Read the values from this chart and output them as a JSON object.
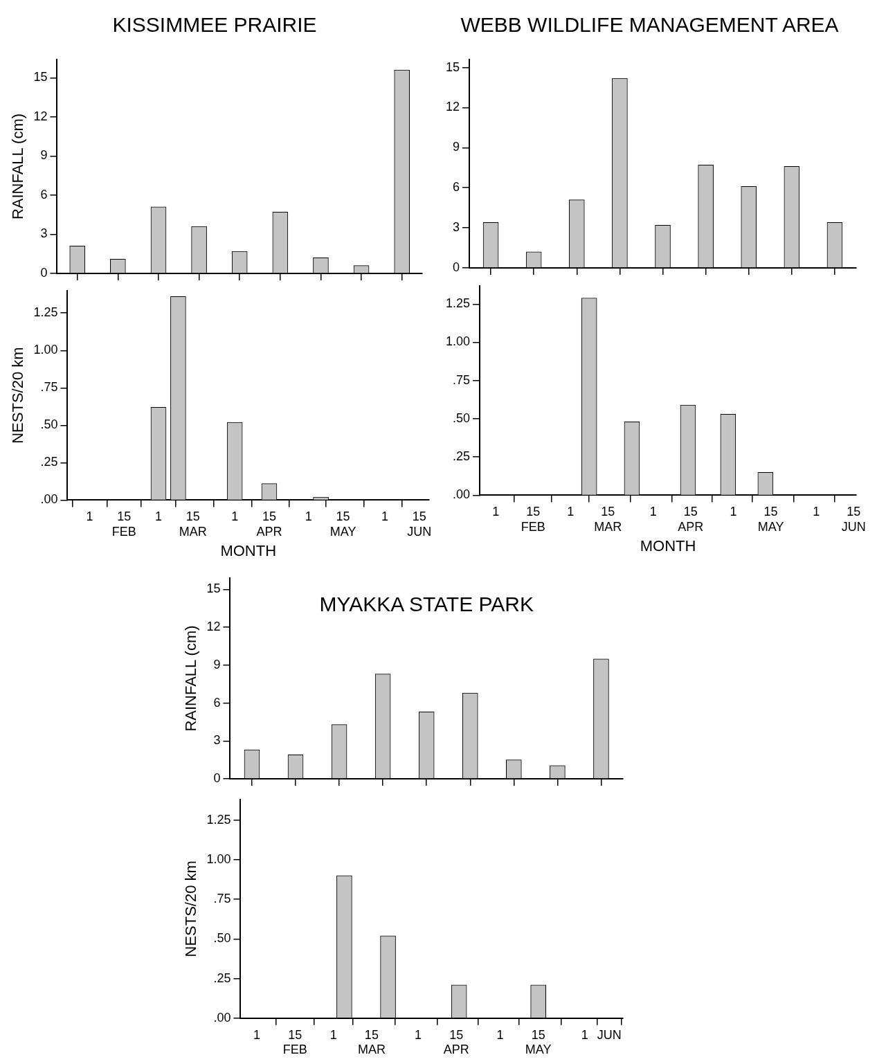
{
  "chart_data": [
    {
      "type": "bar",
      "title": "KISSIMMEE PRAIRIE",
      "ylabel": "RAINFALL (cm)",
      "categories": [
        null,
        null,
        null,
        null,
        null,
        null,
        null,
        null,
        null
      ],
      "values": [
        2.1,
        1.1,
        5.1,
        3.6,
        1.7,
        4.7,
        1.2,
        0.6,
        15.6
      ],
      "color": "#c4c4c4",
      "ylim": [
        0,
        16.4
      ],
      "yticks": [
        0,
        3,
        6,
        9,
        12,
        15
      ],
      "tick_labels": "y"
    },
    {
      "type": "bar",
      "title": "WEBB WILDLIFE MANAGEMENT AREA",
      "categories": [
        null,
        null,
        null,
        null,
        null,
        null,
        null,
        null,
        null
      ],
      "values": [
        3.4,
        1.2,
        5.1,
        14.2,
        3.2,
        7.7,
        6.1,
        7.6,
        3.4
      ],
      "color": "#c4c4c4",
      "ylim": [
        0,
        15.6
      ],
      "yticks": [
        0,
        3,
        6,
        9,
        12,
        15
      ],
      "tick_labels": "y"
    },
    {
      "type": "bar",
      "xlabel": "MONTH",
      "ylabel": "NESTS/20 km",
      "x": [
        "--03-01",
        "--03-09",
        "--04-01",
        "--04-15",
        "--05-06"
      ],
      "values": [
        0.62,
        1.36,
        0.52,
        0.11,
        0.02
      ],
      "color": "#c4c4c4",
      "xlim": [
        "--01-23",
        "--06-19"
      ],
      "xticks": [
        {
          "value": "--02-01",
          "label": "1"
        },
        {
          "value": "--02-15",
          "label": "15\nFEB"
        },
        {
          "value": "--03-01",
          "label": "1"
        },
        {
          "value": "--03-15",
          "label": "15\nMAR"
        },
        {
          "value": "--04-01",
          "label": "1"
        },
        {
          "value": "--04-15",
          "label": "15\nAPR"
        },
        {
          "value": "--05-01",
          "label": "1"
        },
        {
          "value": "--05-15",
          "label": "15\nMAY"
        },
        {
          "value": "--06-01",
          "label": "1"
        },
        {
          "value": "--06-15",
          "label": "15\nJUN"
        }
      ],
      "ylim": [
        0,
        1.4
      ],
      "yticks": [
        {
          "value": 0,
          "label": ".00"
        },
        {
          "value": 0.25,
          "label": ".25"
        },
        {
          "value": 0.5,
          "label": ".50"
        },
        {
          "value": 0.75,
          "label": ".75"
        },
        {
          "value": 1,
          "label": "1.00"
        },
        {
          "value": 1.25,
          "label": "1.25"
        }
      ]
    },
    {
      "type": "bar",
      "xlabel": "MONTH",
      "x": [
        "--03-08",
        "--03-24",
        "--04-14",
        "--04-29",
        "--05-13"
      ],
      "values": [
        1.29,
        0.48,
        0.59,
        0.53,
        0.15
      ],
      "color": "#c4c4c4",
      "xlim": [
        "--01-26",
        "--06-16"
      ],
      "xticks": [
        {
          "value": "--02-01",
          "label": "1"
        },
        {
          "value": "--02-15",
          "label": "15\nFEB"
        },
        {
          "value": "--03-01",
          "label": "1"
        },
        {
          "value": "--03-15",
          "label": "15\nMAR"
        },
        {
          "value": "--04-01",
          "label": "1"
        },
        {
          "value": "--04-15",
          "label": "15\nAPR"
        },
        {
          "value": "--05-01",
          "label": "1"
        },
        {
          "value": "--05-15",
          "label": "15\nMAY"
        },
        {
          "value": "--06-01",
          "label": "1"
        },
        {
          "value": "--06-15",
          "label": "15\nJUN"
        }
      ],
      "ylim": [
        0,
        1.37
      ],
      "yticks": [
        {
          "value": 0,
          "label": ".00"
        },
        {
          "value": 0.25,
          "label": ".25"
        },
        {
          "value": 0.5,
          "label": ".50"
        },
        {
          "value": 0.75,
          "label": ".75"
        },
        {
          "value": 1,
          "label": "1.00"
        },
        {
          "value": 1.25,
          "label": "1.25"
        }
      ]
    },
    {
      "type": "bar",
      "title": "MYAKKA STATE PARK",
      "ylabel": "RAINFALL (cm)",
      "categories": [
        null,
        null,
        null,
        null,
        null,
        null,
        null,
        null,
        null
      ],
      "values": [
        2.3,
        1.9,
        4.3,
        8.3,
        5.3,
        6.8,
        1.5,
        1.05,
        9.5
      ],
      "color": "#c4c4c4",
      "ylim": [
        0,
        15.9
      ],
      "yticks": [
        0,
        3,
        6,
        9,
        12,
        15
      ],
      "tick_labels": "y"
    },
    {
      "type": "bar",
      "ylabel": "NESTS/20 km",
      "x": [
        "--03-05",
        "--03-21",
        "--04-16",
        "--05-15"
      ],
      "values": [
        0.9,
        0.52,
        0.21,
        0.21
      ],
      "color": "#c4c4c4",
      "xlim": [
        "--01-26",
        "--06-15"
      ],
      "xticks": [
        {
          "value": "--02-01",
          "label": "1"
        },
        {
          "value": "--02-15",
          "label": "15\nFEB"
        },
        {
          "value": "--03-01",
          "label": "1"
        },
        {
          "value": "--03-15",
          "label": "15\nMAR"
        },
        {
          "value": "--04-01",
          "label": "1"
        },
        {
          "value": "--04-15",
          "label": "15\nAPR"
        },
        {
          "value": "--05-01",
          "label": "1"
        },
        {
          "value": "--05-15",
          "label": "15\nMAY"
        },
        {
          "value": "--06-01",
          "label": "1"
        },
        {
          "value": "--06-10",
          "label": "JUN"
        }
      ],
      "ylim": [
        0,
        1.38
      ],
      "yticks": [
        {
          "value": 0,
          "label": ".00"
        },
        {
          "value": 0.25,
          "label": ".25"
        },
        {
          "value": 0.5,
          "label": ".50"
        },
        {
          "value": 0.75,
          "label": ".75"
        },
        {
          "value": 1,
          "label": "1.00"
        },
        {
          "value": 1.25,
          "label": "1.25"
        }
      ]
    }
  ]
}
